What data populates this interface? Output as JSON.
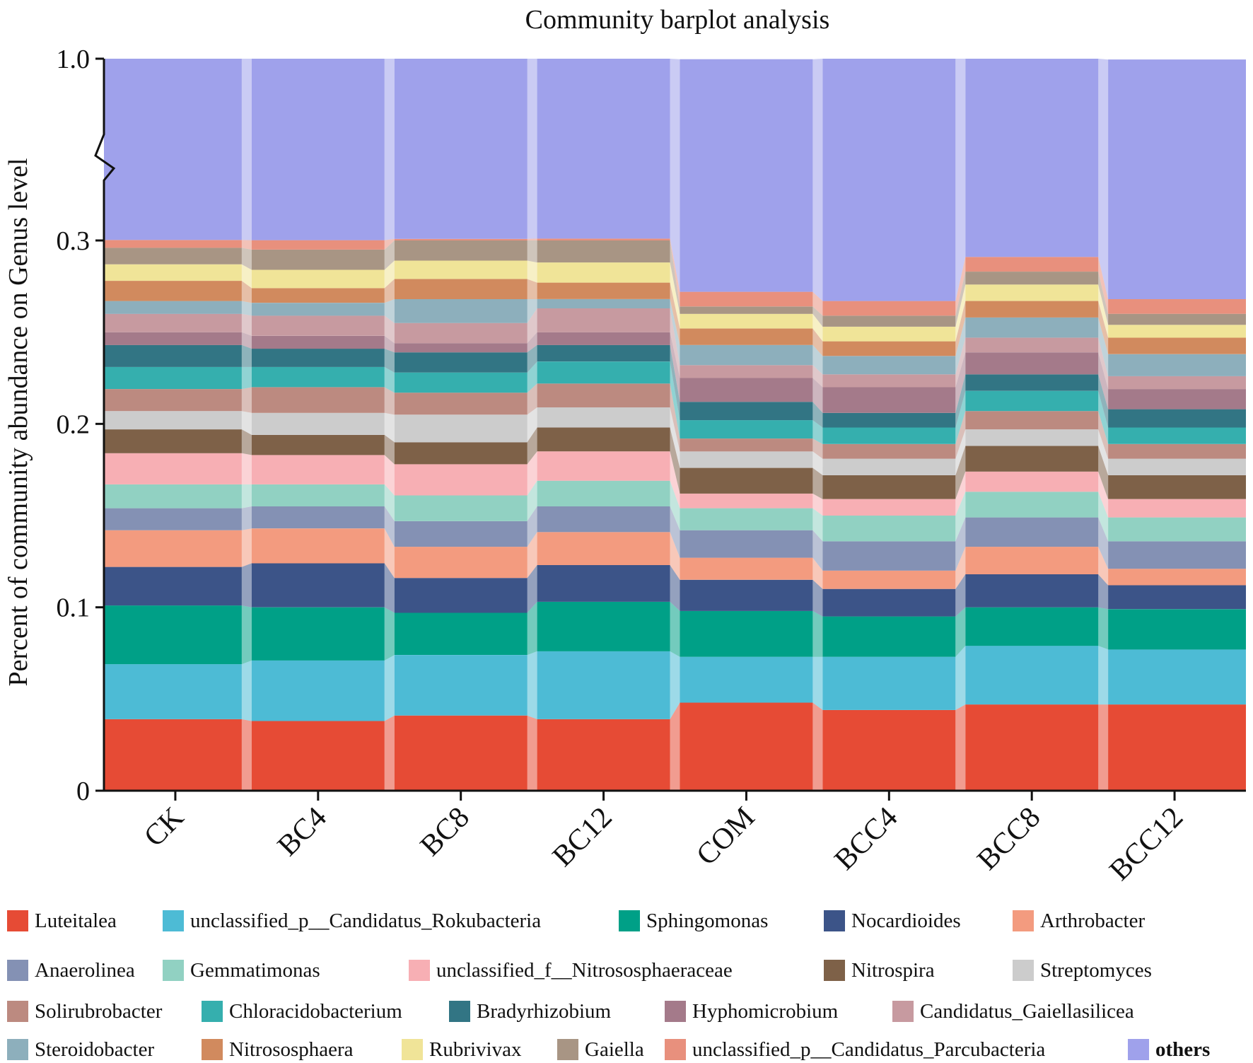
{
  "chart_data": {
    "type": "stacked_bar",
    "title": "Community barplot analysis",
    "xlabel": "",
    "ylabel": "Percent of community abundance on Genus level",
    "y_ticks": [
      "0",
      "0.1",
      "0.2",
      "0.3",
      "1.0"
    ],
    "ylim": [
      0,
      1.0
    ],
    "axis_break": {
      "from": 0.3,
      "to": 1.0
    },
    "categories": [
      "CK",
      "BC4",
      "BC8",
      "BC12",
      "COM",
      "BCC4",
      "BCC8",
      "BCC12"
    ],
    "series": [
      {
        "name": "Luteitalea",
        "color": "#E64B35",
        "values": [
          0.039,
          0.038,
          0.041,
          0.039,
          0.048,
          0.044,
          0.047,
          0.047
        ]
      },
      {
        "name": "unclassified_p__Candidatus_Rokubacteria",
        "color": "#4DBBD5",
        "values": [
          0.03,
          0.033,
          0.033,
          0.037,
          0.025,
          0.029,
          0.032,
          0.03
        ]
      },
      {
        "name": "Sphingomonas",
        "color": "#00A087",
        "values": [
          0.032,
          0.029,
          0.023,
          0.027,
          0.025,
          0.022,
          0.021,
          0.022
        ]
      },
      {
        "name": "Nocardioides",
        "color": "#3C5488",
        "values": [
          0.021,
          0.024,
          0.019,
          0.02,
          0.017,
          0.015,
          0.018,
          0.013
        ]
      },
      {
        "name": "Arthrobacter",
        "color": "#F39B7F",
        "values": [
          0.02,
          0.019,
          0.017,
          0.018,
          0.012,
          0.01,
          0.015,
          0.009
        ]
      },
      {
        "name": "Anaerolinea",
        "color": "#8491B4",
        "values": [
          0.012,
          0.012,
          0.014,
          0.014,
          0.015,
          0.016,
          0.016,
          0.015
        ]
      },
      {
        "name": "Gemmatimonas",
        "color": "#91D1C2",
        "values": [
          0.013,
          0.012,
          0.014,
          0.014,
          0.012,
          0.014,
          0.014,
          0.013
        ]
      },
      {
        "name": "unclassified_f__Nitrososphaeraceae",
        "color": "#F7AFB4",
        "values": [
          0.017,
          0.016,
          0.017,
          0.016,
          0.008,
          0.009,
          0.011,
          0.01
        ]
      },
      {
        "name": "Nitrospira",
        "color": "#7E6148",
        "values": [
          0.013,
          0.011,
          0.012,
          0.013,
          0.014,
          0.013,
          0.014,
          0.013
        ]
      },
      {
        "name": "Streptomyces",
        "color": "#CCCCCC",
        "values": [
          0.01,
          0.012,
          0.015,
          0.011,
          0.009,
          0.009,
          0.009,
          0.009
        ]
      },
      {
        "name": "Solirubrobacter",
        "color": "#BC8A80",
        "values": [
          0.012,
          0.014,
          0.012,
          0.013,
          0.007,
          0.008,
          0.01,
          0.008
        ]
      },
      {
        "name": "Chloracidobacterium",
        "color": "#35AFAE",
        "values": [
          0.012,
          0.011,
          0.011,
          0.012,
          0.01,
          0.009,
          0.011,
          0.009
        ]
      },
      {
        "name": "Bradyrhizobium",
        "color": "#327584",
        "values": [
          0.012,
          0.01,
          0.011,
          0.009,
          0.01,
          0.008,
          0.009,
          0.01
        ]
      },
      {
        "name": "Hyphomicrobium",
        "color": "#A47A8A",
        "values": [
          0.007,
          0.007,
          0.005,
          0.007,
          0.013,
          0.014,
          0.012,
          0.011
        ]
      },
      {
        "name": "Candidatus_Gaiellasilicea",
        "color": "#C79AA0",
        "values": [
          0.01,
          0.011,
          0.011,
          0.013,
          0.007,
          0.007,
          0.008,
          0.007
        ]
      },
      {
        "name": "Steroidobacter",
        "color": "#8DAFBC",
        "values": [
          0.007,
          0.007,
          0.013,
          0.005,
          0.011,
          0.01,
          0.011,
          0.012
        ]
      },
      {
        "name": "Nitrososphaera",
        "color": "#D18A5E",
        "values": [
          0.011,
          0.008,
          0.011,
          0.009,
          0.009,
          0.008,
          0.009,
          0.009
        ]
      },
      {
        "name": "Rubrivivax",
        "color": "#F0E498",
        "values": [
          0.009,
          0.01,
          0.01,
          0.011,
          0.008,
          0.008,
          0.009,
          0.007
        ]
      },
      {
        "name": "Gaiella",
        "color": "#A89584",
        "values": [
          0.009,
          0.011,
          0.011,
          0.012,
          0.004,
          0.006,
          0.007,
          0.006
        ]
      },
      {
        "name": "unclassified_p__Candidatus_Parcubacteria",
        "color": "#E8907D",
        "values": [
          0.006,
          0.006,
          0.006,
          0.007,
          0.008,
          0.008,
          0.008,
          0.008
        ]
      },
      {
        "name": "others",
        "color": "#9FA1EB",
        "values": [
          0.698,
          0.702,
          0.694,
          0.693,
          0.726,
          0.733,
          0.711,
          0.729
        ]
      }
    ],
    "legend_position": "bottom",
    "legend_bold": [
      "others"
    ],
    "grid": false
  }
}
